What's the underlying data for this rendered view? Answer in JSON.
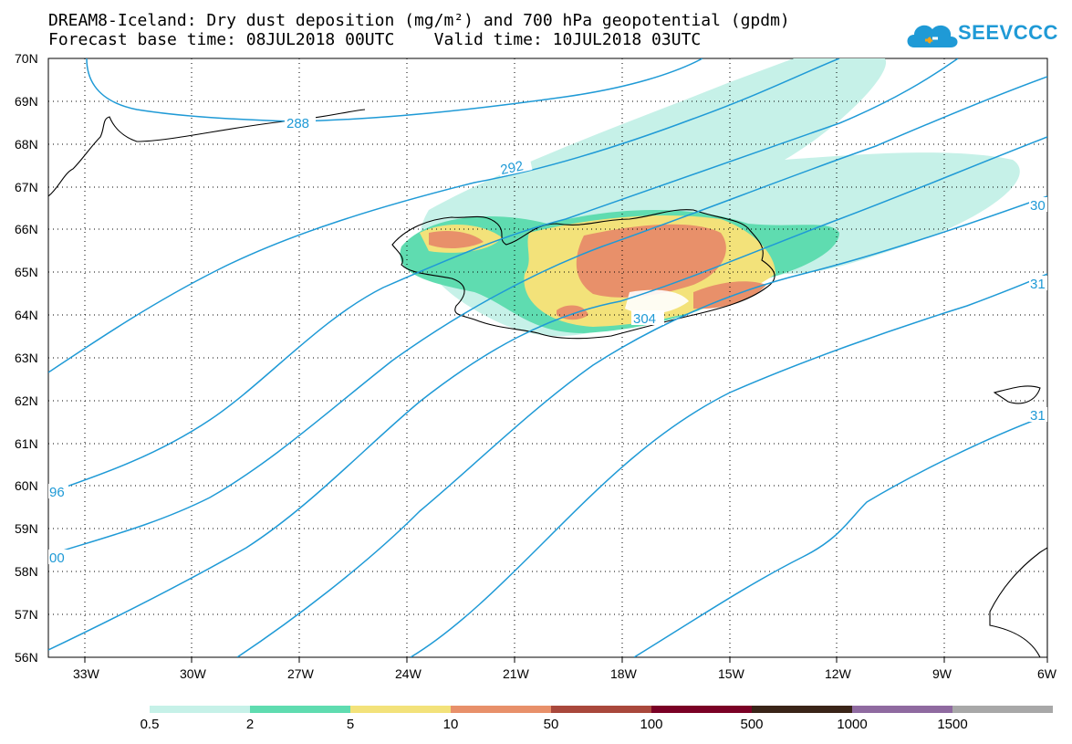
{
  "header": {
    "title_line1": "DREAM8-Iceland: Dry dust deposition (mg/m²) and 700 hPa geopotential (gpdm)",
    "title_line2": "Forecast base time: 08JUL2018 00UTC    Valid time: 10JUL2018 03UTC",
    "logo_text": "SEEVCCC",
    "logo_icon": "cloud-icon"
  },
  "map": {
    "lat_labels": [
      "70N",
      "69N",
      "68N",
      "67N",
      "66N",
      "65N",
      "64N",
      "63N",
      "62N",
      "61N",
      "60N",
      "59N",
      "58N",
      "57N",
      "56N"
    ],
    "lon_labels": [
      "33W",
      "30W",
      "27W",
      "24W",
      "21W",
      "18W",
      "15W",
      "12W",
      "9W",
      "6W"
    ],
    "grid": "dotted",
    "contour_color": "#1f9ad6",
    "contour_labels": [
      "288",
      "292",
      "304",
      "96",
      "00",
      "30",
      "31",
      "31"
    ]
  },
  "legend": {
    "labels": [
      "0.5",
      "2",
      "5",
      "10",
      "50",
      "100",
      "500",
      "1000",
      "1500"
    ],
    "colors": [
      "#c6f1e8",
      "#5fdcb0",
      "#f3e27a",
      "#e8906a",
      "#a9483c",
      "#7a0025",
      "#3a2418",
      "#8f6aa0",
      "#a8a8a8"
    ]
  }
}
